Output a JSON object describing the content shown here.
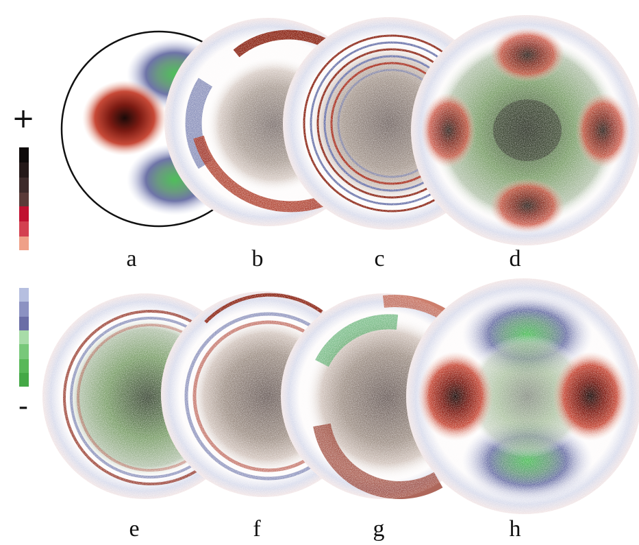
{
  "scale": {
    "plus": "+",
    "minus": "-"
  },
  "panels": [
    {
      "label": "a"
    },
    {
      "label": "b"
    },
    {
      "label": "c"
    },
    {
      "label": "d"
    },
    {
      "label": "e"
    },
    {
      "label": "f"
    },
    {
      "label": "g"
    },
    {
      "label": "h"
    }
  ]
}
